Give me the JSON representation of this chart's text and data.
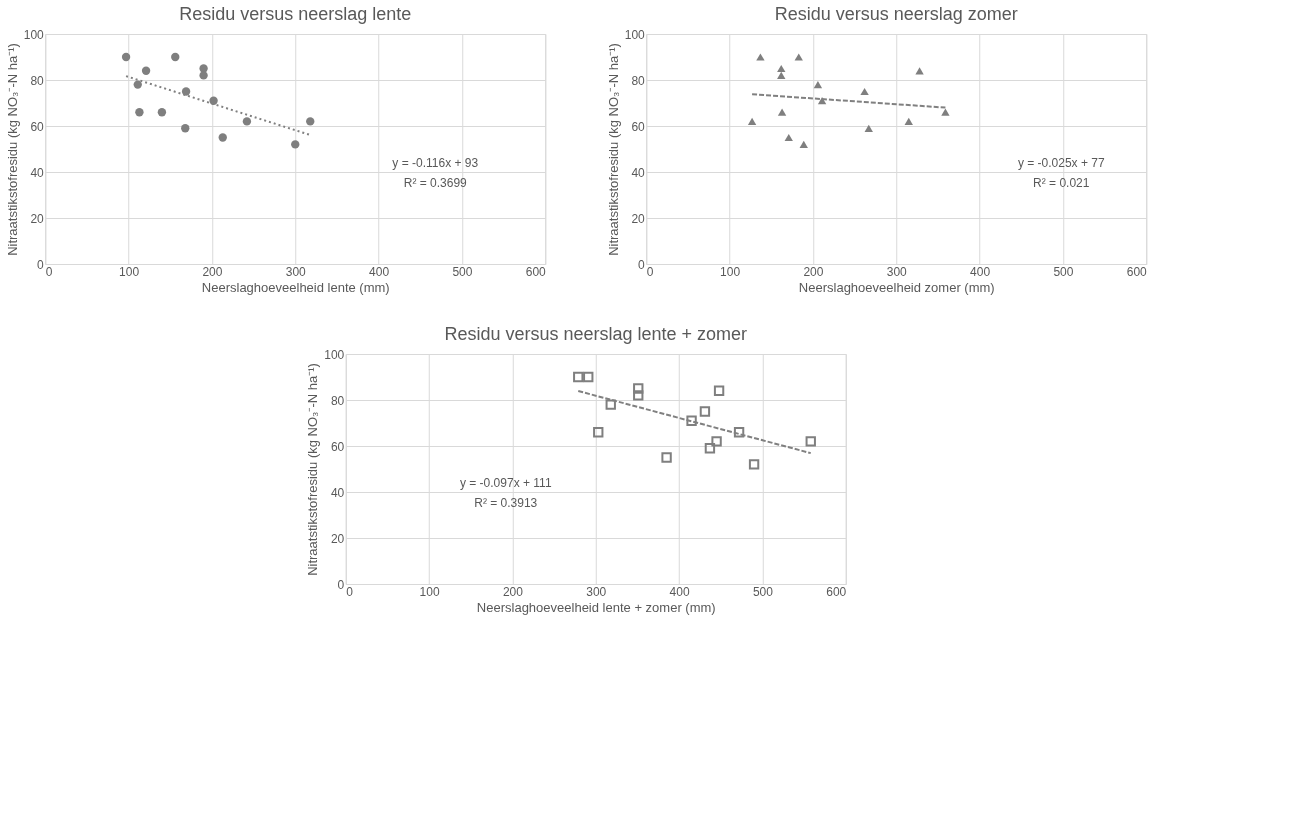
{
  "chart_data": [
    {
      "type": "scatter",
      "title": "Residu versus neerslag lente",
      "xlabel": "Neerslaghoeveelheid lente (mm)",
      "ylabel": "Nitraatstikstofresidu (kg NO₃⁻-N ha⁻¹)",
      "grid": true,
      "xlim": [
        0,
        600
      ],
      "ylim": [
        0,
        100
      ],
      "xticks": [
        0,
        100,
        200,
        300,
        400,
        500,
        600
      ],
      "yticks": [
        0,
        20,
        40,
        60,
        80,
        100
      ],
      "series": [
        {
          "marker": "circle",
          "color": "#7f7f7f",
          "x": [
            97,
            111,
            113,
            121,
            140,
            156,
            168,
            169,
            190,
            190,
            202,
            213,
            242,
            300,
            318
          ],
          "values": [
            90,
            78,
            66,
            84,
            66,
            90,
            59,
            75,
            85,
            82,
            71,
            55,
            62,
            52,
            62
          ]
        },
        {
          "type": "line",
          "line_style": "dotted",
          "color": "#808080",
          "x": [
            97,
            318
          ],
          "values": [
            81.7,
            56.1
          ]
        }
      ],
      "annotations": [
        "y = -0.116x + 93",
        "R² = 0.3699"
      ]
    },
    {
      "type": "scatter",
      "title": "Residu versus neerslag zomer",
      "xlabel": "Neerslaghoeveelheid zomer (mm)",
      "ylabel": "Nitraatstikstofresidu (kg NO₃⁻-N ha⁻¹)",
      "grid": true,
      "xlim": [
        0,
        600
      ],
      "ylim": [
        0,
        100
      ],
      "xticks": [
        0,
        100,
        200,
        300,
        400,
        500,
        600
      ],
      "yticks": [
        0,
        20,
        40,
        60,
        80,
        100
      ],
      "series": [
        {
          "marker": "triangle",
          "color": "#7f7f7f",
          "x": [
            127,
            137,
            162,
            162,
            163,
            171,
            183,
            189,
            206,
            211,
            262,
            267,
            315,
            328,
            359
          ],
          "values": [
            62,
            90,
            85,
            82,
            66,
            55,
            90,
            52,
            78,
            71,
            75,
            59,
            62,
            84,
            66
          ]
        },
        {
          "type": "line",
          "line_style": "dashed",
          "color": "#808080",
          "x": [
            127,
            359
          ],
          "values": [
            73.8,
            68.0
          ]
        }
      ],
      "annotations": [
        "y = -0.025x + 77",
        "R² = 0.021"
      ]
    },
    {
      "type": "scatter",
      "title": "Residu versus neerslag lente + zomer",
      "xlabel": "Neerslaghoeveelheid lente + zomer (mm)",
      "ylabel": "Nitraatstikstofresidu (kg NO₃⁻-N ha⁻¹)",
      "grid": true,
      "xlim": [
        0,
        600
      ],
      "ylim": [
        0,
        100
      ],
      "xticks": [
        0,
        100,
        200,
        300,
        400,
        500,
        600
      ],
      "yticks": [
        0,
        20,
        40,
        60,
        80,
        100
      ],
      "series": [
        {
          "marker": "square",
          "color": "#7f7f7f",
          "x": [
            279,
            291,
            303,
            318,
            351,
            351,
            385,
            415,
            431,
            437,
            445,
            448,
            472,
            490,
            558
          ],
          "values": [
            90,
            90,
            66,
            78,
            85,
            82,
            55,
            71,
            75,
            59,
            62,
            84,
            66,
            52,
            62
          ]
        },
        {
          "type": "line",
          "line_style": "dashed",
          "color": "#808080",
          "x": [
            279,
            558
          ],
          "values": [
            83.9,
            56.9
          ]
        }
      ],
      "annotations": [
        "y = -0.097x + 111",
        "R² = 0.3913"
      ]
    }
  ]
}
